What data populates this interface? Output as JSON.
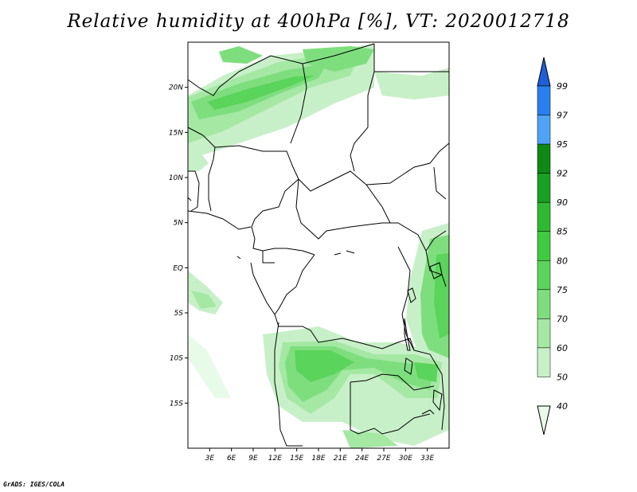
{
  "title": "Relative humidity at 400hPa [%], VT: 2020012718",
  "footer": "GrADS: IGES/COLA",
  "map": {
    "lon_range": [
      0,
      36
    ],
    "lat_range": [
      -20,
      25
    ],
    "y_axis_labels": [
      "20N",
      "15N",
      "10N",
      "5N",
      "EQ",
      "5S",
      "10S",
      "15S"
    ],
    "x_axis_labels": [
      "3E",
      "6E",
      "9E",
      "12E",
      "15E",
      "18E",
      "21E",
      "24E",
      "27E",
      "30E",
      "33E"
    ]
  },
  "colorbar": {
    "levels": [
      "99",
      "97",
      "95",
      "92",
      "90",
      "85",
      "80",
      "75",
      "70",
      "60",
      "50",
      "40"
    ],
    "colors": [
      "#1f5fd8",
      "#2a7ff0",
      "#4fa3f5",
      "#0e8a14",
      "#18a020",
      "#2fb832",
      "#3fca3f",
      "#5ad45a",
      "#7ede7e",
      "#a4e8a4",
      "#c8f0c8",
      "#e8fae8"
    ]
  }
}
